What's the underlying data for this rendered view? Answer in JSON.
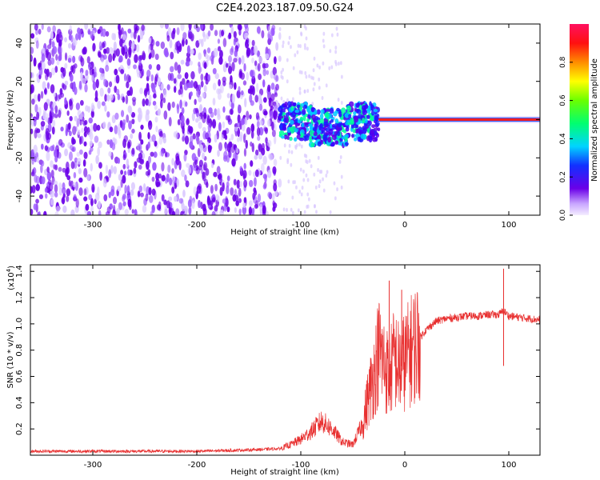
{
  "title": "C2E4.2023.187.09.50.G24",
  "colors": {
    "trace": "#e83030",
    "spec_purple": "#6a00e8",
    "spec_light": "#d9c7ff"
  },
  "chart_data": [
    {
      "type": "heatmap",
      "xlabel": "Height of straight line (km)",
      "ylabel": "Frequency (Hz)",
      "xlim": [
        -360,
        130
      ],
      "ylim": [
        -50,
        50
      ],
      "xticks": [
        -300,
        -200,
        -100,
        0,
        100
      ],
      "xticklabels": [
        "-300",
        "-200",
        "-100",
        "0",
        "100"
      ],
      "yticks": [
        -40,
        -20,
        0,
        20,
        40
      ],
      "yticklabels": [
        "-40",
        "-20",
        "0",
        "20",
        "40"
      ],
      "colorbar": {
        "label": "Normalized spectral amplitude",
        "range": [
          0,
          1
        ],
        "ticks": [
          0.0,
          0.2,
          0.4,
          0.6,
          0.8
        ],
        "ticklabels": [
          "0.0",
          "0.2",
          "0.4",
          "0.6",
          "0.8"
        ]
      },
      "features": [
        {
          "region": "diffuse noise",
          "x_range": [
            -360,
            -120
          ],
          "freq_range": [
            -50,
            50
          ],
          "amplitude": 0.15
        },
        {
          "region": "signal onset",
          "x_range": [
            -120,
            -25
          ],
          "freq_range": [
            -12,
            7
          ],
          "amplitude": 0.45
        },
        {
          "region": "carrier line",
          "x_range": [
            -25,
            130
          ],
          "freq": 0,
          "amplitude": 0.95
        }
      ]
    },
    {
      "type": "line",
      "xlabel": "Height of straight line (km)",
      "ylabel": "SNR (10 * v/v)",
      "scale_label": "(x10",
      "scale_exp": "4",
      "scale_close": ")",
      "xlim": [
        -360,
        130
      ],
      "ylim": [
        0,
        1.45
      ],
      "xticks": [
        -300,
        -200,
        -100,
        0,
        100
      ],
      "xticklabels": [
        "-300",
        "-200",
        "-100",
        "0",
        "100"
      ],
      "yticks": [
        0.2,
        0.4,
        0.6,
        0.8,
        1.0,
        1.2,
        1.4
      ],
      "yticklabels": [
        "0.2",
        "0.4",
        "0.6",
        "0.8",
        "1.0",
        "1.2",
        "1.4"
      ],
      "series": [
        {
          "x": [
            -360,
            -300,
            -250,
            -200,
            -150,
            -120,
            -110,
            -100,
            -90,
            -80,
            -70,
            -60,
            -50,
            -40,
            -35,
            -30,
            -25,
            -20,
            -15,
            -10,
            -5,
            0,
            10,
            20,
            30,
            40,
            50,
            60,
            70,
            80,
            90,
            95,
            100,
            110,
            120,
            130
          ],
          "y": [
            0.03,
            0.03,
            0.03,
            0.03,
            0.04,
            0.05,
            0.08,
            0.12,
            0.18,
            0.26,
            0.2,
            0.1,
            0.08,
            0.25,
            0.45,
            0.6,
            0.8,
            0.7,
            0.6,
            0.75,
            0.65,
            0.72,
            0.85,
            0.95,
            1.02,
            1.04,
            1.05,
            1.06,
            1.06,
            1.07,
            1.07,
            1.1,
            1.06,
            1.05,
            1.04,
            1.03
          ]
        }
      ],
      "spikes": [
        {
          "x": -15,
          "y": 1.33
        },
        {
          "x": -3,
          "y": 1.26
        },
        {
          "x": 95,
          "y": 1.42
        },
        {
          "x": 95,
          "y": 0.68
        }
      ]
    }
  ]
}
